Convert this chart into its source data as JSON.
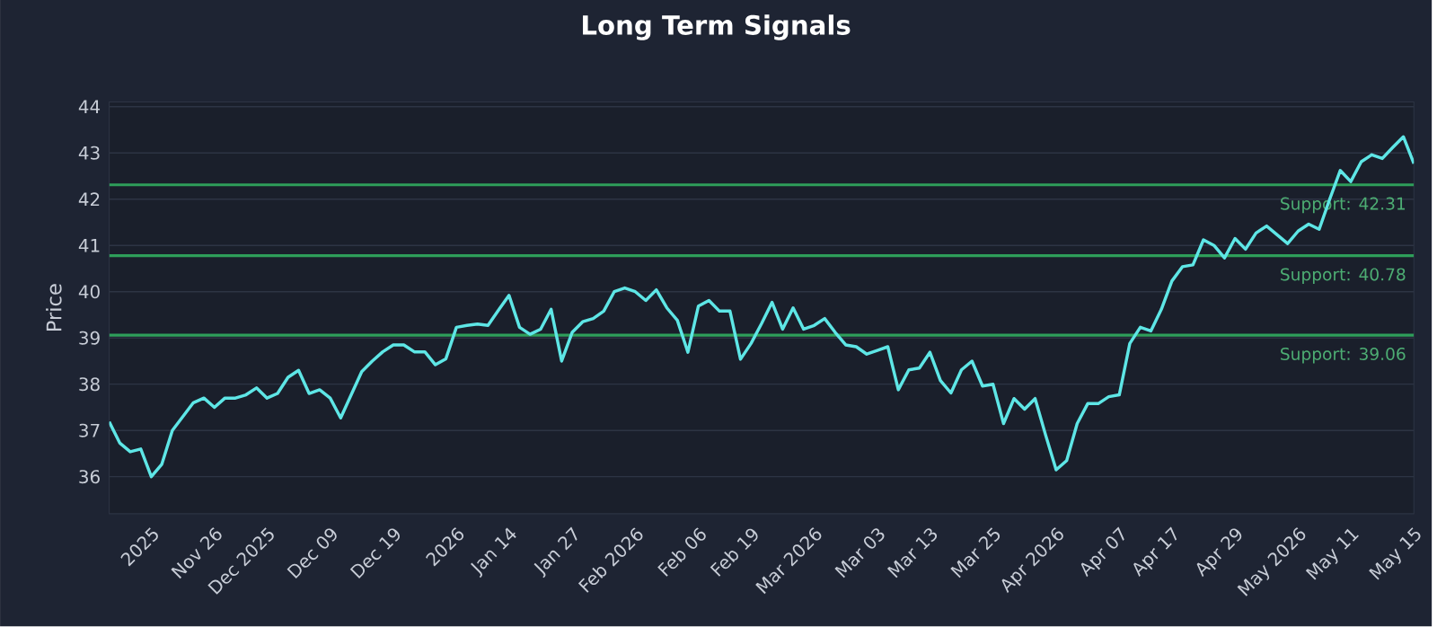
{
  "chart_data": {
    "type": "line",
    "title": "Long Term Signals",
    "ylabel": "Price",
    "categories": [
      null,
      null,
      null,
      null,
      "2025",
      null,
      null,
      null,
      null,
      null,
      "Nov 26",
      null,
      null,
      null,
      null,
      "Dec 2025",
      null,
      null,
      null,
      null,
      null,
      "Dec 09",
      null,
      null,
      null,
      null,
      null,
      "Dec 19",
      null,
      null,
      null,
      null,
      null,
      "2026",
      null,
      null,
      null,
      null,
      "Jan 14",
      null,
      null,
      null,
      null,
      null,
      "Jan 27",
      null,
      null,
      null,
      null,
      null,
      "Feb 2026",
      null,
      null,
      null,
      null,
      null,
      "Feb 06",
      null,
      null,
      null,
      null,
      "Feb 19",
      null,
      null,
      null,
      null,
      null,
      "Mar 2026",
      null,
      null,
      null,
      null,
      null,
      "Mar 03",
      null,
      null,
      null,
      null,
      "Mar 13",
      null,
      null,
      null,
      null,
      null,
      "Mar 25",
      null,
      null,
      null,
      null,
      null,
      "Apr 2026",
      null,
      null,
      null,
      null,
      null,
      "Apr 07",
      null,
      null,
      null,
      null,
      "Apr 17",
      null,
      null,
      null,
      null,
      null,
      "Apr 29",
      null,
      null,
      null,
      null,
      null,
      "May 2026",
      null,
      null,
      null,
      null,
      "May 11",
      null,
      null,
      null,
      null,
      null,
      "May 15"
    ],
    "series": [
      {
        "color": "#5ee6e6",
        "values": [
          37.19,
          36.73,
          36.54,
          36.6,
          36.0,
          36.27,
          37.0,
          37.3,
          37.6,
          37.7,
          37.5,
          37.7,
          37.7,
          37.77,
          37.92,
          37.7,
          37.8,
          38.15,
          38.3,
          37.8,
          37.88,
          37.7,
          37.27,
          37.77,
          38.27,
          38.5,
          38.7,
          38.85,
          38.85,
          38.7,
          38.7,
          38.42,
          38.55,
          39.23,
          39.27,
          39.3,
          39.27,
          39.6,
          39.92,
          39.23,
          39.08,
          39.19,
          39.62,
          38.5,
          39.12,
          39.35,
          39.42,
          39.58,
          40.0,
          40.08,
          40.0,
          39.81,
          40.04,
          39.65,
          39.38,
          38.69,
          39.69,
          39.81,
          39.58,
          39.58,
          38.54,
          38.88,
          39.31,
          39.77,
          39.19,
          39.65,
          39.19,
          39.27,
          39.42,
          39.12,
          38.85,
          38.81,
          38.65,
          38.73,
          38.81,
          37.88,
          38.31,
          38.35,
          38.69,
          38.08,
          37.81,
          38.31,
          38.5,
          37.96,
          38.0,
          37.15,
          37.69,
          37.46,
          37.69,
          36.9,
          36.15,
          36.35,
          37.15,
          37.58,
          37.58,
          37.73,
          37.77,
          38.88,
          39.23,
          39.15,
          39.62,
          40.23,
          40.54,
          40.58,
          41.12,
          41.0,
          40.73,
          41.15,
          40.92,
          41.27,
          41.42,
          41.23,
          41.04,
          41.31,
          41.46,
          41.35,
          42.0,
          42.62,
          42.38,
          42.81,
          42.96,
          42.88,
          43.12,
          43.35,
          42.77
        ]
      }
    ],
    "ylim": [
      35.2,
      44.1
    ],
    "yticks": [
      36,
      37,
      38,
      39,
      40,
      41,
      42,
      43,
      44
    ],
    "ref_lines": [
      {
        "axis": "y",
        "value": 42.31,
        "label": "Support: 42.31",
        "color": "#2e9e5a"
      },
      {
        "axis": "y",
        "value": 40.78,
        "label": "Support: 40.78",
        "color": "#2e9e5a"
      },
      {
        "axis": "y",
        "value": 39.06,
        "label": "Support: 39.06",
        "color": "#2e9e5a"
      }
    ],
    "grid": "y",
    "marker": "none",
    "line_style": "solid"
  }
}
